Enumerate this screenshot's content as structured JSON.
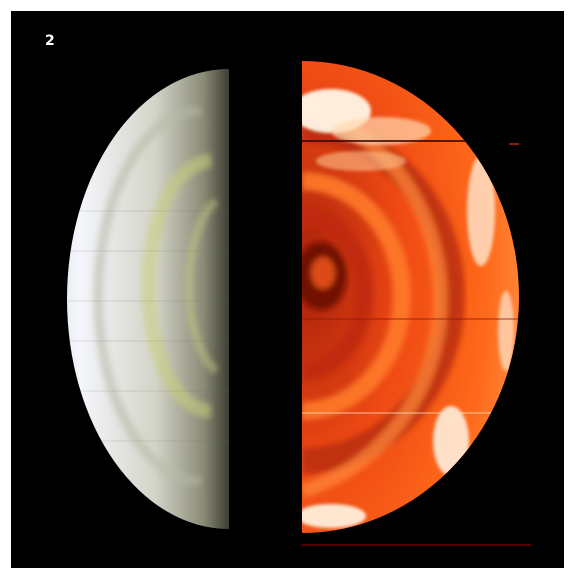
{
  "figure": {
    "panel_label": "2",
    "background_color": "#000000",
    "left_half_palette": [
      "#f4f6fb",
      "#d9dbd2",
      "#c9cf9a",
      "#1a1a14"
    ],
    "right_half_palette": [
      "#fff6e6",
      "#ff6a1a",
      "#c8260a",
      "#5c0500"
    ]
  }
}
